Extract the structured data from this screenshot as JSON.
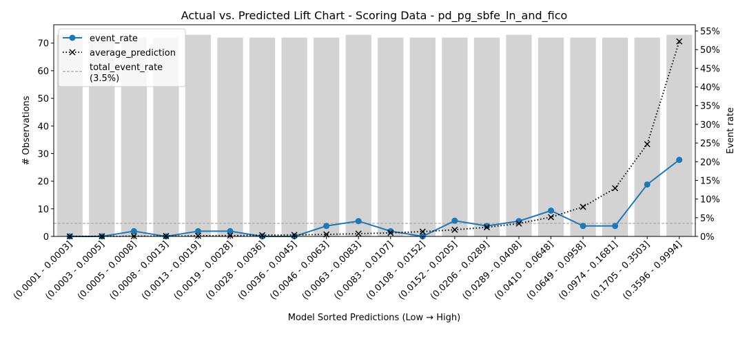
{
  "chart_data": {
    "type": "bar",
    "title": "Actual vs. Predicted Lift Chart - Scoring Data - pd_pg_sbfe_ln_and_fico",
    "xlabel": "Model Sorted Predictions (Low → High)",
    "ylabel": "# Observations",
    "y2label": "Event rate",
    "ylim": [
      0,
      76.65
    ],
    "y2lim": [
      0,
      0.5666
    ],
    "yticks": [
      "0",
      "10",
      "20",
      "30",
      "40",
      "50",
      "60",
      "70"
    ],
    "y2ticks": [
      "0%",
      "5%",
      "10%",
      "15%",
      "20%",
      "25%",
      "30%",
      "35%",
      "40%",
      "45%",
      "50%",
      "55%"
    ],
    "categories": [
      "(0.0001 - 0.0003]",
      "(0.0003 - 0.0005]",
      "(0.0005 - 0.0008]",
      "(0.0008 - 0.0013]",
      "(0.0013 - 0.0019]",
      "(0.0019 - 0.0028]",
      "(0.0028 - 0.0036]",
      "(0.0036 - 0.0045]",
      "(0.0046 - 0.0063]",
      "(0.0063 - 0.0083]",
      "(0.0083 - 0.0107]",
      "(0.0108 - 0.0152]",
      "(0.0152 - 0.0205]",
      "(0.0206 - 0.0289]",
      "(0.0289 - 0.0408]",
      "(0.0410 - 0.0648]",
      "(0.0649 - 0.0958]",
      "(0.0974 - 0.1681]",
      "(0.1705 - 0.3503]",
      "(0.3596 - 0.9994]"
    ],
    "observations": [
      73,
      72,
      72,
      72,
      73,
      72,
      72,
      72,
      72,
      73,
      72,
      72,
      72,
      72,
      73,
      72,
      72,
      72,
      72,
      73
    ],
    "series": [
      {
        "name": "event_rate",
        "color": "#1f77b4",
        "marker": "circle",
        "line": "solid",
        "values": [
          0.0,
          0.0,
          0.014,
          0.0,
          0.014,
          0.014,
          0.0,
          0.0,
          0.028,
          0.041,
          0.014,
          0.0,
          0.042,
          0.028,
          0.041,
          0.069,
          0.028,
          0.028,
          0.139,
          0.205
        ]
      },
      {
        "name": "average_prediction",
        "color": "#000000",
        "marker": "x",
        "line": "dotted",
        "values": [
          0.0002,
          0.0004,
          0.0007,
          0.001,
          0.0016,
          0.0023,
          0.0032,
          0.0041,
          0.0054,
          0.0073,
          0.0095,
          0.0128,
          0.0178,
          0.0245,
          0.0345,
          0.0515,
          0.079,
          0.129,
          0.247,
          0.522
        ]
      }
    ],
    "reference_line": {
      "name": "total_event_rate",
      "note": "(3.5%)",
      "value": 0.035,
      "color": "#aaaaaa",
      "line": "dashed"
    },
    "bar_color": "#d3d3d3",
    "legend": {
      "placement": "top-left",
      "entries": [
        "event_rate",
        "average_prediction",
        "total_event_rate",
        "(3.5%)"
      ]
    },
    "grid": false
  }
}
